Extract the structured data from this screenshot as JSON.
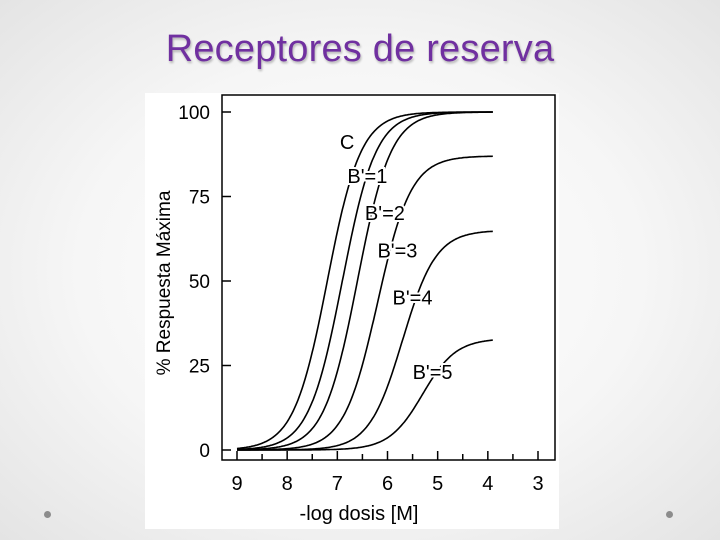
{
  "slide": {
    "title": "Receptores de reserva",
    "title_color": "#7030a0"
  },
  "chart_data": {
    "type": "line",
    "title": "",
    "xlabel": "-log dosis [M]",
    "ylabel": "% Respuesta Máxima",
    "x_ticks": [
      9,
      8,
      7,
      6,
      5,
      4,
      3
    ],
    "y_ticks": [
      0,
      25,
      50,
      75,
      100
    ],
    "xlim": [
      9,
      3
    ],
    "ylim": [
      0,
      100
    ],
    "x_reversed": true,
    "grid": false,
    "line_color": "#000000",
    "series": [
      {
        "name": "C",
        "max": 100,
        "ec50": 7.2,
        "hill": 1.3
      },
      {
        "name": "B'=1",
        "max": 100,
        "ec50": 6.9,
        "hill": 1.3
      },
      {
        "name": "B'=2",
        "max": 100,
        "ec50": 6.6,
        "hill": 1.3
      },
      {
        "name": "B'=3",
        "max": 87,
        "ec50": 6.2,
        "hill": 1.3
      },
      {
        "name": "B'=4",
        "max": 65,
        "ec50": 5.7,
        "hill": 1.3
      },
      {
        "name": "B'=5",
        "max": 33,
        "ec50": 5.3,
        "hill": 1.3
      }
    ]
  }
}
